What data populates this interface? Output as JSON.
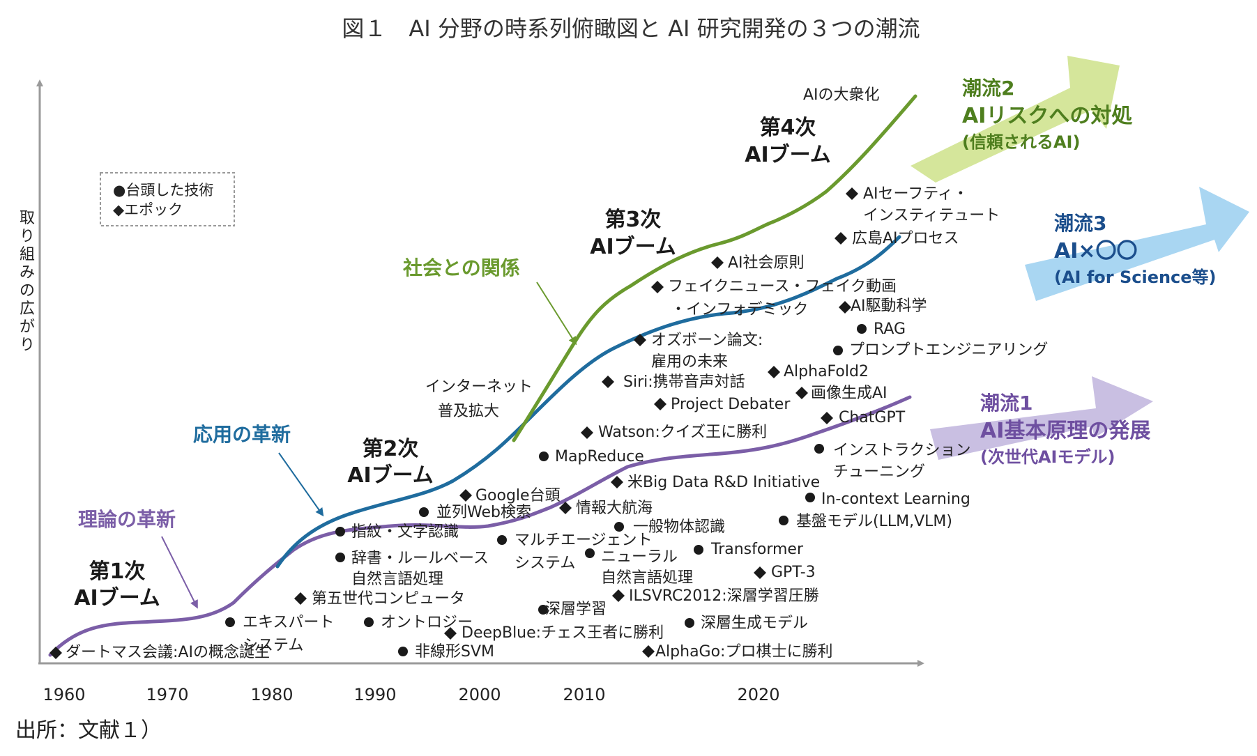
{
  "title": "図１　AI 分野の時系列俯瞰図と AI 研究開発の３つの潮流",
  "source": "出所：文献１）",
  "y_axis_label": "取り組みの広がり",
  "x_ticks": [
    "1960",
    "1970",
    "1980",
    "1990",
    "2000",
    "2010",
    "2020"
  ],
  "legend": {
    "tech": "●台頭した技術",
    "epoch": "◆エポック"
  },
  "colors": {
    "theory": "#7B5EA7",
    "application": "#1F6C9E",
    "society": "#6A9A2E",
    "stream1_arrow": "#C9BFE2",
    "stream2_arrow": "#D5E69B",
    "stream3_arrow": "#A9D6F2",
    "stream1_text": "#6E4FA0",
    "stream2_text": "#4E7E1E",
    "stream3_text": "#1B4E8C"
  },
  "curve_labels": {
    "theory": "理論の革新",
    "application": "応用の革新",
    "society": "社会との関係",
    "internet_1": "インターネット",
    "internet_2": "普及拡大",
    "mass": "AIの大衆化"
  },
  "booms": {
    "b1_1": "第1次",
    "b1_2": "AIブーム",
    "b2_1": "第2次",
    "b2_2": "AIブーム",
    "b3_1": "第3次",
    "b3_2": "AIブーム",
    "b4_1": "第4次",
    "b4_2": "AIブーム"
  },
  "streams": {
    "s1_1": "潮流1",
    "s1_2": "AI基本原理の発展",
    "s1_3": "(次世代AIモデル)",
    "s2_1": "潮流2",
    "s2_2": "AIリスクへの対処",
    "s2_3": "(信頼されるAI)",
    "s3_1": "潮流3",
    "s3_2": "AI×〇〇",
    "s3_3": "(AI for Science等)"
  },
  "items": {
    "dartmouth": "ダートマス会議:AIの概念誕生",
    "expert_1": "エキスパート",
    "expert_2": "システム",
    "fifth_gen": "第五世代コンピュータ",
    "finger": "指紋・文字認識",
    "dict_1": "辞書・ルールベース",
    "dict_2": "自然言語処理",
    "ontology": "オントロジー",
    "svm": "非線形SVM",
    "parallel_web": "並列Web検索",
    "google": "Google台頭",
    "deepblue": "DeepBlue:チェス王者に勝利",
    "multiagent_1": "マルチエージェント",
    "multiagent_2": "システム",
    "deep_learning": "深層学習",
    "mapreduce": "MapReduce",
    "info_voyage": "情報大航海",
    "watson": "Watson:クイズ王に勝利",
    "neural_1": "ニューラル",
    "neural_2": "自然言語処理",
    "general_obj": "一般物体認識",
    "big_data": "米Big Data R&D Initiative",
    "ilsvrc": "ILSVRC2012:深層学習圧勝",
    "siri": "Siri:携帯音声対話",
    "osborne_1": "オズボーン論文:",
    "osborne_2": "雇用の未来",
    "project_debater": "Project Debater",
    "fake_1": "フェイクニュース・フェイク動画",
    "fake_2": "・インフォデミック",
    "alphago": "AlphaGo:プロ棋士に勝利",
    "deep_gen": "深層生成モデル",
    "transformer": "Transformer",
    "ai_principles": "AI社会原則",
    "gpt3": "GPT-3",
    "foundation": "基盤モデル(LLM,VLM)",
    "alphafold": "AlphaFold2",
    "image_gen": "画像生成AI",
    "icl": "In-context Learning",
    "instruction_1": "インストラクション",
    "instruction_2": "チューニング",
    "chatgpt": "ChatGPT",
    "prompt_eng": "プロンプトエンジニアリング",
    "rag": "RAG",
    "ai_driven": "AI駆動科学",
    "hiroshima": "広島AIプロセス",
    "safety_1": "AIセーフティ・",
    "safety_2": "インスティテュート"
  }
}
